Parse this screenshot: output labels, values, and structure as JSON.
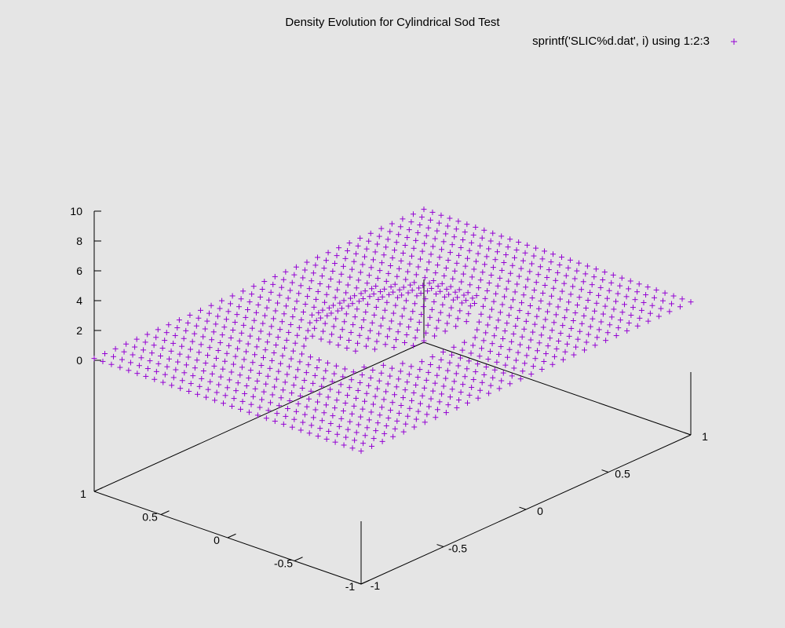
{
  "chart_data": {
    "type": "scatter",
    "title": "Density Evolution for Cylindrical Sod Test",
    "legend": {
      "label": "sprintf('SLIC%d.dat', i) using 1:2:3",
      "marker": "+",
      "placement": "top-right"
    },
    "color": "#9400d3",
    "background": "#e5e5e5",
    "grid": false,
    "projection": "3d-perspective",
    "xlim": [
      -1,
      1
    ],
    "ylim": [
      -1,
      1
    ],
    "zlim": [
      0,
      10
    ],
    "x_ticks": [
      -1,
      -0.5,
      0,
      0.5,
      1
    ],
    "y_ticks": [
      -1,
      -0.5,
      0,
      0.5,
      1
    ],
    "z_ticks": [
      0,
      2,
      4,
      6,
      8,
      10
    ],
    "x_tick_labels": [
      "-1",
      "-0.5",
      "0",
      "0.5",
      "1"
    ],
    "y_tick_labels": [
      "-1",
      "-0.5",
      "0",
      "0.5",
      "1"
    ],
    "z_tick_labels": [
      "0",
      "2",
      "4",
      "6",
      "8",
      "10"
    ],
    "grid_points_per_side": 32,
    "series": [
      {
        "z_outer": 0.125,
        "z_inner": 1.0,
        "inner_radius": 0.4
      }
    ]
  }
}
